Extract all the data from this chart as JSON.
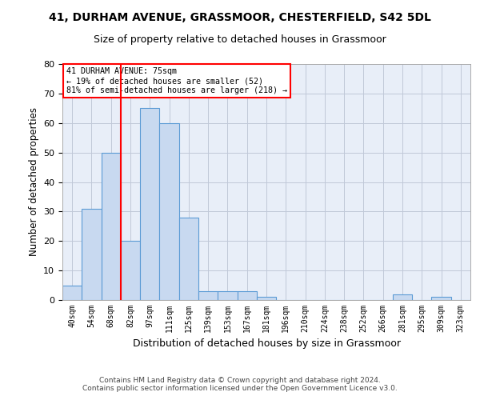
{
  "title": "41, DURHAM AVENUE, GRASSMOOR, CHESTERFIELD, S42 5DL",
  "subtitle": "Size of property relative to detached houses in Grassmoor",
  "xlabel": "Distribution of detached houses by size in Grassmoor",
  "ylabel": "Number of detached properties",
  "bar_labels": [
    "40sqm",
    "54sqm",
    "68sqm",
    "82sqm",
    "97sqm",
    "111sqm",
    "125sqm",
    "139sqm",
    "153sqm",
    "167sqm",
    "181sqm",
    "196sqm",
    "210sqm",
    "224sqm",
    "238sqm",
    "252sqm",
    "266sqm",
    "281sqm",
    "295sqm",
    "309sqm",
    "323sqm"
  ],
  "bar_values": [
    5,
    31,
    50,
    20,
    65,
    60,
    28,
    3,
    3,
    3,
    1,
    0,
    0,
    0,
    0,
    0,
    0,
    2,
    0,
    1,
    0
  ],
  "bar_color": "#c8d9f0",
  "bar_edge_color": "#5b9bd5",
  "red_line_x": 2.5,
  "annotation_line1": "41 DURHAM AVENUE: 75sqm",
  "annotation_line2": "← 19% of detached houses are smaller (52)",
  "annotation_line3": "81% of semi-detached houses are larger (218) →",
  "annotation_box_color": "white",
  "annotation_box_edge": "red",
  "ylim": [
    0,
    80
  ],
  "yticks": [
    0,
    10,
    20,
    30,
    40,
    50,
    60,
    70,
    80
  ],
  "grid_color": "#c0c8d8",
  "background_color": "#e8eef8",
  "footer_line1": "Contains HM Land Registry data © Crown copyright and database right 2024.",
  "footer_line2": "Contains public sector information licensed under the Open Government Licence v3.0."
}
